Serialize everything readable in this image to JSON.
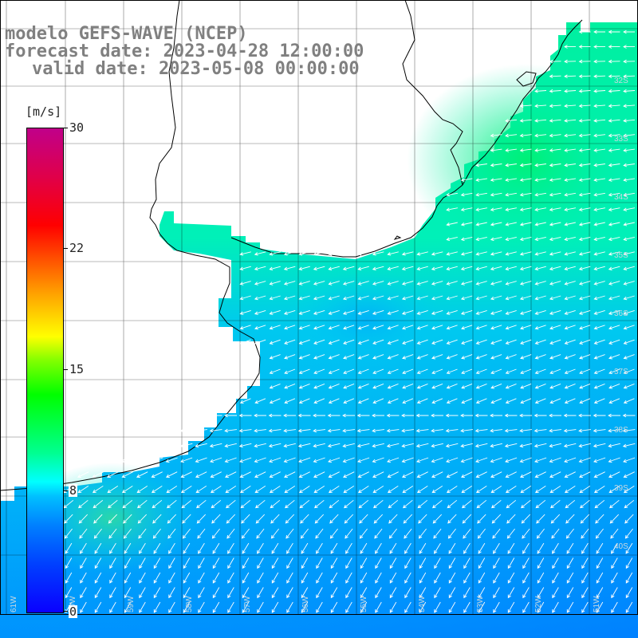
{
  "title": {
    "line1": "modelo GEFS-WAVE (NCEP)",
    "line2": "forecast date: 2023-04-28 12:00:00",
    "line3": "valid date: 2023-05-08 00:00:00"
  },
  "colorbar": {
    "unit": "[m/s]",
    "labels": [
      "30",
      "22",
      "15",
      "8",
      "0"
    ],
    "label_values": [
      30,
      22,
      15,
      8,
      0
    ],
    "range": [
      0,
      30
    ],
    "colors": [
      "#0a00ff",
      "#0080ff",
      "#00ffff",
      "#00ff00",
      "#ffff00",
      "#ff8000",
      "#ff0000",
      "#c0008a"
    ]
  },
  "map": {
    "lat_labels": [
      "32S",
      "33S",
      "34S",
      "35S",
      "36S",
      "37S",
      "38S",
      "39S",
      "40S"
    ],
    "lon_labels": [
      "61W",
      "60W",
      "59W",
      "58W",
      "57W",
      "56W",
      "55W",
      "54W",
      "53W",
      "52W",
      "51W"
    ],
    "ocean_color": "#00d8f0",
    "land_color": "#ffffff",
    "arrow_color": "#ffffff",
    "wind_direction_north": "easterly (arrows point west)",
    "wind_direction_south": "northeasterly (arrows point southwest)"
  }
}
